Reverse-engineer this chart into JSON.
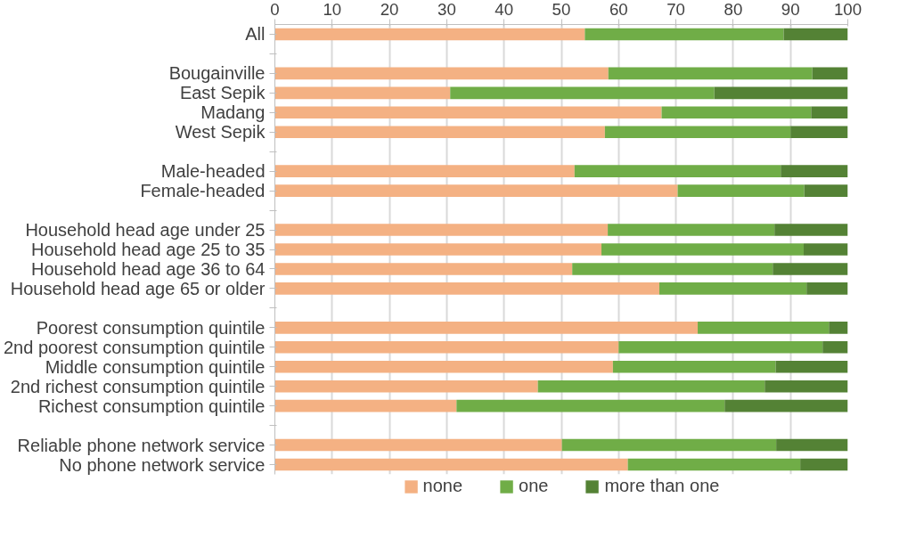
{
  "chart_data": {
    "type": "bar",
    "orientation": "horizontal",
    "stacked": true,
    "categories": [
      "All",
      null,
      "Bougainville",
      "East Sepik",
      "Madang",
      "West Sepik",
      null,
      "Male-headed",
      "Female-headed",
      null,
      "Household head age under 25",
      "Household head age 25 to 35",
      "Household head age 36 to 64",
      "Household head age 65 or older",
      null,
      "Poorest consumption quintile",
      "2nd poorest consumption quintile",
      "Middle consumption quintile",
      "2nd richest consumption quintile",
      "Richest consumption quintile",
      null,
      "Reliable phone network service",
      "No phone network service"
    ],
    "series": [
      {
        "name": "none",
        "color": "#f4b183",
        "values": [
          54.1,
          null,
          58.2,
          30.6,
          67.5,
          57.6,
          null,
          52.3,
          70.3,
          null,
          58.1,
          57.0,
          51.9,
          67.1,
          null,
          73.8,
          60.0,
          59.0,
          45.9,
          31.7,
          null,
          50.1,
          61.6
        ]
      },
      {
        "name": "one",
        "color": "#70ad47",
        "values": [
          34.7,
          null,
          35.6,
          46.1,
          26.1,
          32.4,
          null,
          36.0,
          22.1,
          null,
          29.1,
          35.3,
          35.0,
          25.7,
          null,
          22.9,
          35.6,
          28.4,
          39.6,
          46.8,
          null,
          37.4,
          30.1
        ]
      },
      {
        "name": "more than one",
        "color": "#548235",
        "values": [
          11.2,
          null,
          6.2,
          23.3,
          6.4,
          10.0,
          null,
          11.7,
          7.6,
          null,
          12.8,
          7.7,
          13.1,
          7.2,
          null,
          3.3,
          4.4,
          12.6,
          14.5,
          21.5,
          null,
          12.5,
          8.3
        ]
      }
    ],
    "xlim": [
      0,
      100
    ],
    "xticks": [
      0,
      10,
      20,
      30,
      40,
      50,
      60,
      70,
      80,
      90,
      100
    ],
    "grid": "x",
    "legend": "bottom"
  }
}
